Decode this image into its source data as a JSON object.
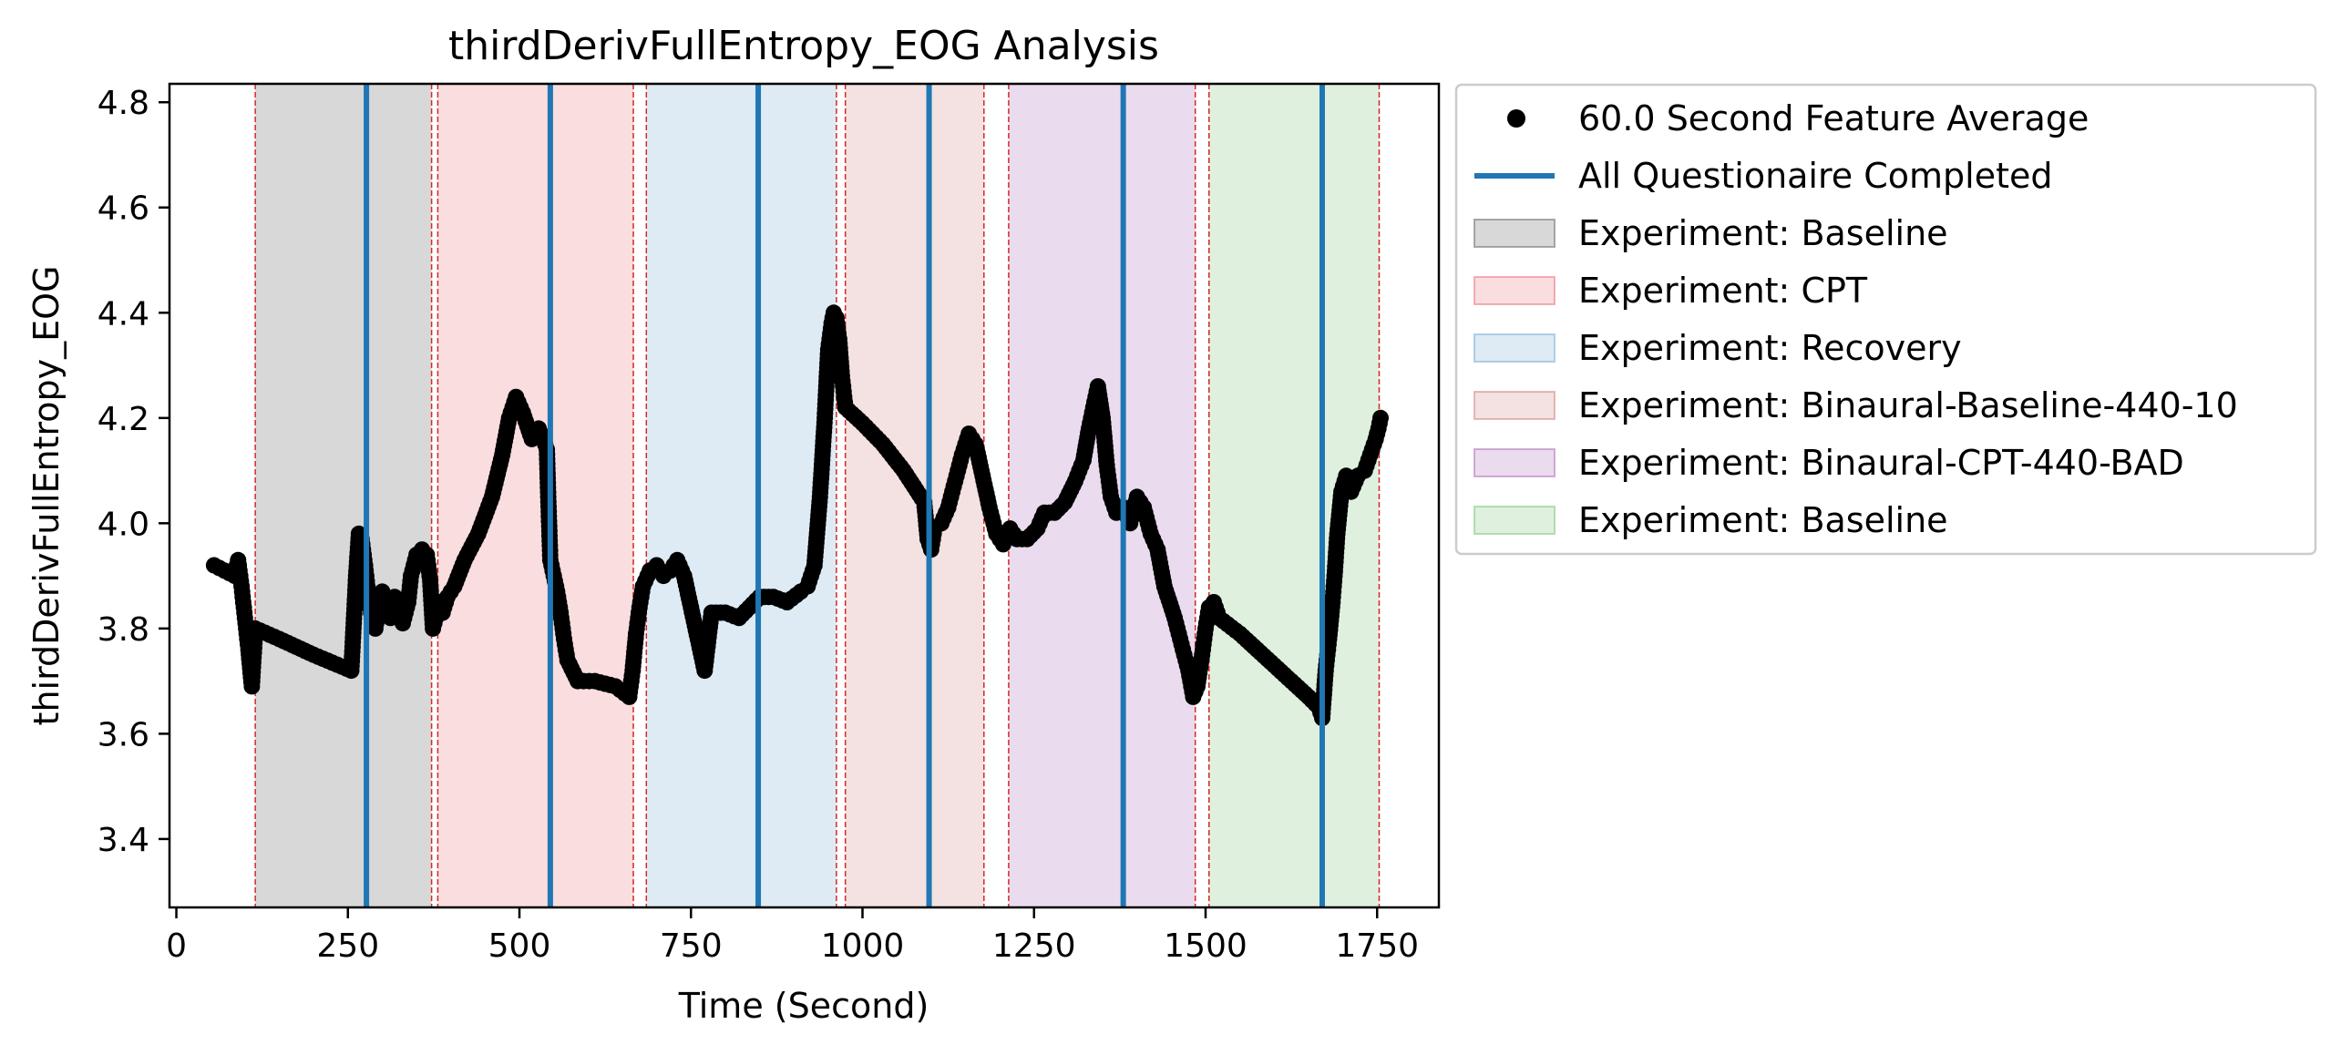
{
  "chart_data": {
    "type": "scatter",
    "title": "thirdDerivFullEntropy_EOG Analysis",
    "xlabel": "Time (Second)",
    "ylabel": "thirdDerivFullEntropy_EOG",
    "xlim": [
      -10,
      1840
    ],
    "ylim": [
      3.27,
      4.835
    ],
    "x_ticks": [
      0,
      250,
      500,
      750,
      1000,
      1250,
      1500,
      1750
    ],
    "x_tick_labels": [
      "0",
      "250",
      "500",
      "750",
      "1000",
      "1250",
      "1500",
      "1750"
    ],
    "y_ticks": [
      3.4,
      3.6,
      3.8,
      4.0,
      4.2,
      4.4,
      4.6,
      4.8
    ],
    "y_tick_labels": [
      "3.4",
      "3.6",
      "3.8",
      "4.0",
      "4.2",
      "4.4",
      "4.6",
      "4.8"
    ],
    "grid": false,
    "legend_position": "outside-right",
    "colors": {
      "points": "#000000",
      "questionnaire_line": "#1f77b4",
      "phase_boundary": "#d62728"
    },
    "series": [
      {
        "name": "60.0 Second Feature Average",
        "points": [
          [
            55,
            3.92
          ],
          [
            70,
            3.91
          ],
          [
            85,
            3.9
          ],
          [
            90,
            3.93
          ],
          [
            95,
            3.88
          ],
          [
            100,
            3.82
          ],
          [
            105,
            3.76
          ],
          [
            110,
            3.69
          ],
          [
            115,
            3.8
          ],
          [
            150,
            3.78
          ],
          [
            200,
            3.75
          ],
          [
            255,
            3.72
          ],
          [
            262,
            3.9
          ],
          [
            266,
            3.98
          ],
          [
            270,
            3.97
          ],
          [
            275,
            3.92
          ],
          [
            280,
            3.86
          ],
          [
            285,
            3.82
          ],
          [
            290,
            3.8
          ],
          [
            295,
            3.84
          ],
          [
            300,
            3.87
          ],
          [
            305,
            3.85
          ],
          [
            312,
            3.82
          ],
          [
            318,
            3.86
          ],
          [
            325,
            3.84
          ],
          [
            330,
            3.81
          ],
          [
            338,
            3.85
          ],
          [
            342,
            3.9
          ],
          [
            350,
            3.94
          ],
          [
            358,
            3.95
          ],
          [
            365,
            3.94
          ],
          [
            370,
            3.89
          ],
          [
            374,
            3.8
          ],
          [
            378,
            3.82
          ],
          [
            382,
            3.85
          ],
          [
            388,
            3.83
          ],
          [
            395,
            3.86
          ],
          [
            405,
            3.88
          ],
          [
            420,
            3.93
          ],
          [
            440,
            3.98
          ],
          [
            460,
            4.05
          ],
          [
            475,
            4.13
          ],
          [
            485,
            4.2
          ],
          [
            495,
            4.24
          ],
          [
            505,
            4.21
          ],
          [
            518,
            4.16
          ],
          [
            528,
            4.18
          ],
          [
            535,
            4.16
          ],
          [
            540,
            4.14
          ],
          [
            542,
            4.05
          ],
          [
            545,
            3.93
          ],
          [
            550,
            3.9
          ],
          [
            555,
            3.87
          ],
          [
            560,
            3.83
          ],
          [
            565,
            3.78
          ],
          [
            570,
            3.74
          ],
          [
            585,
            3.7
          ],
          [
            610,
            3.7
          ],
          [
            640,
            3.69
          ],
          [
            660,
            3.67
          ],
          [
            665,
            3.72
          ],
          [
            670,
            3.79
          ],
          [
            675,
            3.84
          ],
          [
            680,
            3.88
          ],
          [
            690,
            3.91
          ],
          [
            700,
            3.92
          ],
          [
            710,
            3.9
          ],
          [
            720,
            3.91
          ],
          [
            730,
            3.93
          ],
          [
            740,
            3.9
          ],
          [
            750,
            3.84
          ],
          [
            760,
            3.78
          ],
          [
            770,
            3.72
          ],
          [
            780,
            3.83
          ],
          [
            800,
            3.83
          ],
          [
            820,
            3.82
          ],
          [
            835,
            3.84
          ],
          [
            850,
            3.86
          ],
          [
            870,
            3.86
          ],
          [
            890,
            3.85
          ],
          [
            910,
            3.87
          ],
          [
            920,
            3.88
          ],
          [
            930,
            3.92
          ],
          [
            938,
            4.05
          ],
          [
            945,
            4.2
          ],
          [
            950,
            4.33
          ],
          [
            955,
            4.38
          ],
          [
            958,
            4.4
          ],
          [
            962,
            4.39
          ],
          [
            966,
            4.35
          ],
          [
            970,
            4.28
          ],
          [
            975,
            4.22
          ],
          [
            1000,
            4.19
          ],
          [
            1030,
            4.15
          ],
          [
            1060,
            4.1
          ],
          [
            1090,
            4.04
          ],
          [
            1095,
            3.97
          ],
          [
            1100,
            3.95
          ],
          [
            1105,
            3.99
          ],
          [
            1115,
            4.0
          ],
          [
            1125,
            4.03
          ],
          [
            1135,
            4.08
          ],
          [
            1145,
            4.13
          ],
          [
            1155,
            4.17
          ],
          [
            1165,
            4.15
          ],
          [
            1175,
            4.09
          ],
          [
            1185,
            4.03
          ],
          [
            1195,
            3.98
          ],
          [
            1205,
            3.96
          ],
          [
            1215,
            3.99
          ],
          [
            1225,
            3.97
          ],
          [
            1240,
            3.97
          ],
          [
            1255,
            3.99
          ],
          [
            1265,
            4.02
          ],
          [
            1280,
            4.02
          ],
          [
            1295,
            4.04
          ],
          [
            1310,
            4.08
          ],
          [
            1322,
            4.12
          ],
          [
            1330,
            4.18
          ],
          [
            1338,
            4.23
          ],
          [
            1343,
            4.26
          ],
          [
            1350,
            4.2
          ],
          [
            1356,
            4.11
          ],
          [
            1362,
            4.05
          ],
          [
            1370,
            4.02
          ],
          [
            1380,
            4.03
          ],
          [
            1390,
            4.0
          ],
          [
            1400,
            4.05
          ],
          [
            1410,
            4.03
          ],
          [
            1420,
            3.98
          ],
          [
            1430,
            3.95
          ],
          [
            1440,
            3.88
          ],
          [
            1455,
            3.82
          ],
          [
            1465,
            3.77
          ],
          [
            1475,
            3.72
          ],
          [
            1482,
            3.67
          ],
          [
            1488,
            3.69
          ],
          [
            1495,
            3.75
          ],
          [
            1500,
            3.8
          ],
          [
            1505,
            3.84
          ],
          [
            1512,
            3.85
          ],
          [
            1520,
            3.82
          ],
          [
            1550,
            3.79
          ],
          [
            1600,
            3.73
          ],
          [
            1650,
            3.67
          ],
          [
            1665,
            3.65
          ],
          [
            1670,
            3.63
          ],
          [
            1675,
            3.72
          ],
          [
            1680,
            3.78
          ],
          [
            1685,
            3.85
          ],
          [
            1688,
            3.9
          ],
          [
            1692,
            3.98
          ],
          [
            1698,
            4.06
          ],
          [
            1705,
            4.09
          ],
          [
            1712,
            4.06
          ],
          [
            1722,
            4.09
          ],
          [
            1732,
            4.1
          ],
          [
            1740,
            4.13
          ],
          [
            1748,
            4.16
          ],
          [
            1752,
            4.18
          ],
          [
            1755,
            4.2
          ]
        ]
      }
    ],
    "questionnaire_lines": {
      "name": "All Questionaire Completed",
      "x": [
        277,
        545,
        848,
        1097,
        1380,
        1670
      ]
    },
    "phases": [
      {
        "name": "Experiment: Baseline",
        "start": 115,
        "end": 372,
        "color": "#7f7f7f",
        "opacity": 0.3
      },
      {
        "name": "Experiment: CPT",
        "start": 381,
        "end": 666,
        "color": "#e8636b",
        "opacity": 0.22
      },
      {
        "name": "Experiment: Recovery",
        "start": 685,
        "end": 962,
        "color": "#7fb0d6",
        "opacity": 0.26
      },
      {
        "name": "Experiment: Binaural-Baseline-440-10",
        "start": 975,
        "end": 1177,
        "color": "#c86b67",
        "opacity": 0.2
      },
      {
        "name": "Experiment: Binaural-CPT-440-BAD",
        "start": 1213,
        "end": 1485,
        "color": "#ad6aba",
        "opacity": 0.24
      },
      {
        "name": "Experiment: Baseline",
        "start": 1505,
        "end": 1753,
        "color": "#84c77e",
        "opacity": 0.26
      }
    ],
    "phase_boundaries": [
      115,
      372,
      381,
      666,
      685,
      962,
      975,
      1177,
      1213,
      1485,
      1505,
      1753
    ]
  }
}
